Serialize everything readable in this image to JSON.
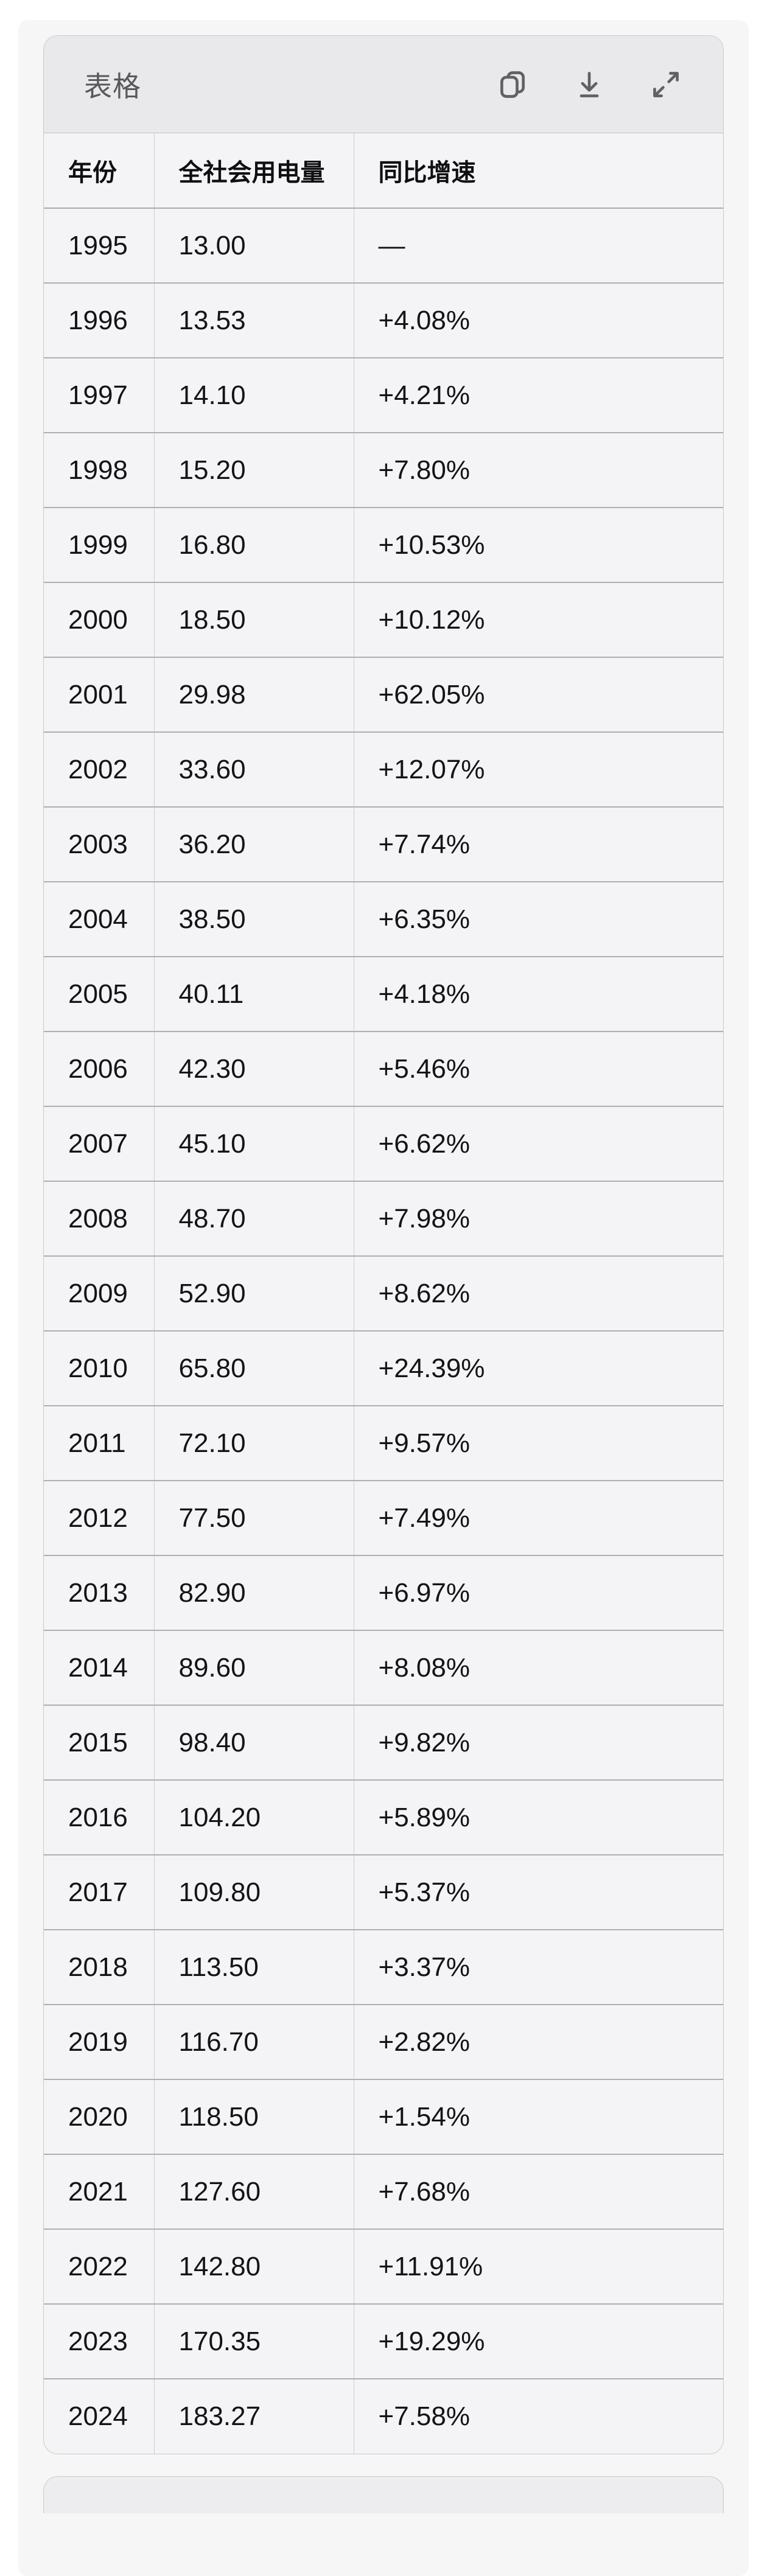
{
  "card": {
    "title": "表格",
    "toolbar": {
      "icons": [
        "copy-icon",
        "download-icon",
        "expand-icon"
      ]
    }
  },
  "table": {
    "columns": [
      "年份",
      "全社会用电量",
      "同比增速"
    ],
    "rows": [
      [
        "1995",
        "13.00",
        "—"
      ],
      [
        "1996",
        "13.53",
        "+4.08%"
      ],
      [
        "1997",
        "14.10",
        "+4.21%"
      ],
      [
        "1998",
        "15.20",
        "+7.80%"
      ],
      [
        "1999",
        "16.80",
        "+10.53%"
      ],
      [
        "2000",
        "18.50",
        "+10.12%"
      ],
      [
        "2001",
        "29.98",
        "+62.05%"
      ],
      [
        "2002",
        "33.60",
        "+12.07%"
      ],
      [
        "2003",
        "36.20",
        "+7.74%"
      ],
      [
        "2004",
        "38.50",
        "+6.35%"
      ],
      [
        "2005",
        "40.11",
        "+4.18%"
      ],
      [
        "2006",
        "42.30",
        "+5.46%"
      ],
      [
        "2007",
        "45.10",
        "+6.62%"
      ],
      [
        "2008",
        "48.70",
        "+7.98%"
      ],
      [
        "2009",
        "52.90",
        "+8.62%"
      ],
      [
        "2010",
        "65.80",
        "+24.39%"
      ],
      [
        "2011",
        "72.10",
        "+9.57%"
      ],
      [
        "2012",
        "77.50",
        "+7.49%"
      ],
      [
        "2013",
        "82.90",
        "+6.97%"
      ],
      [
        "2014",
        "89.60",
        "+8.08%"
      ],
      [
        "2015",
        "98.40",
        "+9.82%"
      ],
      [
        "2016",
        "104.20",
        "+5.89%"
      ],
      [
        "2017",
        "109.80",
        "+5.37%"
      ],
      [
        "2018",
        "113.50",
        "+3.37%"
      ],
      [
        "2019",
        "116.70",
        "+2.82%"
      ],
      [
        "2020",
        "118.50",
        "+1.54%"
      ],
      [
        "2021",
        "127.60",
        "+7.68%"
      ],
      [
        "2022",
        "142.80",
        "+11.91%"
      ],
      [
        "2023",
        "170.35",
        "+19.29%"
      ],
      [
        "2024",
        "183.27",
        "+7.58%"
      ]
    ]
  },
  "colors": {
    "page_background": "#ffffff",
    "panel_background": "#f6f6f7",
    "card_header_background": "#e9e9eb",
    "card_border": "#c9cacc",
    "row_background": "#f4f4f6",
    "horizontal_border": "#aeafb1",
    "vertical_border": "#cbccce",
    "title_text": "#58595b",
    "cell_text": "#141416",
    "icon_color": "#606164"
  }
}
